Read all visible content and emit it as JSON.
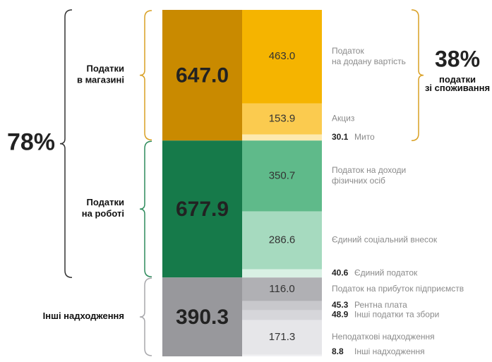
{
  "chart_data": {
    "type": "stacked-blocks",
    "groups": [
      {
        "name": [
          "Податки",
          "в магазині"
        ],
        "total": 647,
        "total_label": "647.0",
        "color": "#c98a00",
        "brace_color": "#d9a024",
        "items": [
          {
            "name": [
              "Податок",
              "на додану вартість"
            ],
            "value": 463,
            "value_label": "463.0",
            "color": "#f5b400"
          },
          {
            "name": [
              "Акциз"
            ],
            "value": 153.9,
            "color": "#fbcb4f"
          },
          {
            "name": [
              "Мито"
            ],
            "value": 30.1,
            "color": "#fde9b0"
          }
        ]
      },
      {
        "name": [
          "Податки",
          "на роботі"
        ],
        "total": 677.9,
        "color": "#167a4a",
        "brace_color": "#2e8b5c",
        "items": [
          {
            "name": [
              "Податок на доходи",
              "фізичних осіб"
            ],
            "value": 350.7,
            "color": "#5fba8a"
          },
          {
            "name": [
              "Єдиний соціальний внесок"
            ],
            "value": 286.6,
            "color": "#a6dabf"
          },
          {
            "name": [
              "Єдиний податок"
            ],
            "value": 40.6,
            "color": "#d9f0e4"
          }
        ]
      },
      {
        "name": [
          "Інші надходження"
        ],
        "total": 390.3,
        "color": "#98989c",
        "brace_color": "#a8a8ac",
        "items": [
          {
            "name": [
              "Податок на прибуток підприємств"
            ],
            "value": 116,
            "value_label": "116.0",
            "color": "#b0b0b4"
          },
          {
            "name": [
              "Рентна плата"
            ],
            "value": 45.3,
            "color": "#c8c8cc"
          },
          {
            "name": [
              "Інші податки та збори"
            ],
            "value": 48.9,
            "color": "#d6d6da"
          },
          {
            "name": [
              "Неподаткові надходження"
            ],
            "value": 171.3,
            "color": "#e6e6e9"
          },
          {
            "name": [
              "Інші надходження"
            ],
            "value": 8.8,
            "color": "#f1f1f3"
          }
        ]
      }
    ],
    "shares": [
      {
        "value": 78,
        "label": "78%",
        "color": "#333333"
      },
      {
        "value": 38,
        "label": "38%",
        "caption": [
          "податки",
          "зі споживання"
        ],
        "color": "#d9a024"
      }
    ]
  }
}
